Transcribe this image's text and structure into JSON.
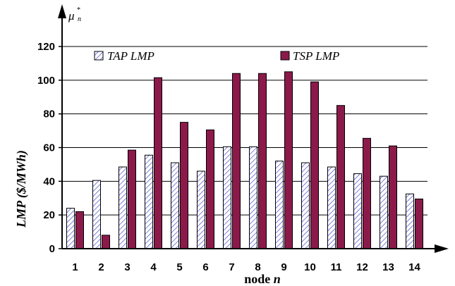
{
  "chart_data": {
    "type": "bar",
    "categories": [
      "1",
      "2",
      "3",
      "4",
      "5",
      "6",
      "7",
      "8",
      "9",
      "10",
      "11",
      "12",
      "13",
      "14"
    ],
    "series": [
      {
        "name": "TAP LMP",
        "values": [
          24,
          40.5,
          48.5,
          55.5,
          51,
          46,
          60.5,
          60.5,
          52,
          51,
          48.5,
          44.5,
          43,
          32.5
        ],
        "color": "#5b5bd6",
        "pattern": "diagonal-hatch"
      },
      {
        "name": "TSP LMP",
        "values": [
          22,
          8,
          58.5,
          101.5,
          75,
          70.5,
          104,
          104,
          105,
          99,
          85,
          65.5,
          61,
          29.5
        ],
        "color": "#8b1a4a"
      }
    ],
    "yticks": [
      0,
      20,
      40,
      60,
      80,
      100,
      120
    ],
    "ylim": [
      0,
      120
    ],
    "ylabel": "LMP  ($/MWh)",
    "xlabel": {
      "text": "node ",
      "var": "n"
    },
    "corner_label": {
      "base": "μ",
      "sup": "*",
      "sub": "n"
    },
    "grid": "horizontal",
    "legend": "top"
  }
}
